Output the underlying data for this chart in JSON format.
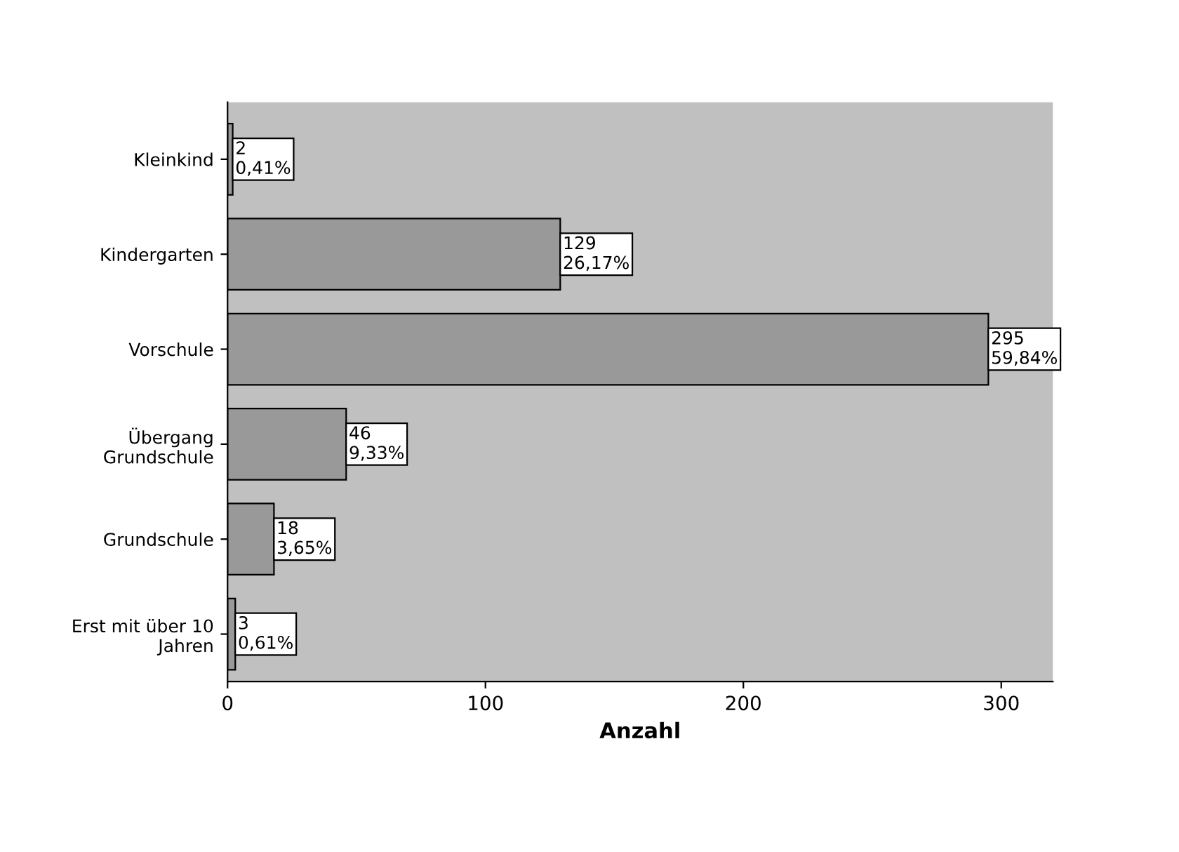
{
  "chart_data": {
    "type": "bar",
    "orientation": "horizontal",
    "categories": [
      "Kleinkind",
      "Kindergarten",
      "Vorschule",
      "Übergang\nGrundschule",
      "Grundschule",
      "Erst mit über 10\nJahren"
    ],
    "values": [
      2,
      129,
      295,
      46,
      18,
      3
    ],
    "value_labels": [
      "2\n0,41%",
      "129\n26,17%",
      "295\n59,84%",
      "46\n9,33%",
      "18\n3,65%",
      "3\n0,61%"
    ],
    "color": "#999999",
    "xlabel": "Anzahl",
    "xlim": [
      0,
      320
    ],
    "xticks": [
      0,
      100,
      200,
      300
    ],
    "grid": false
  }
}
